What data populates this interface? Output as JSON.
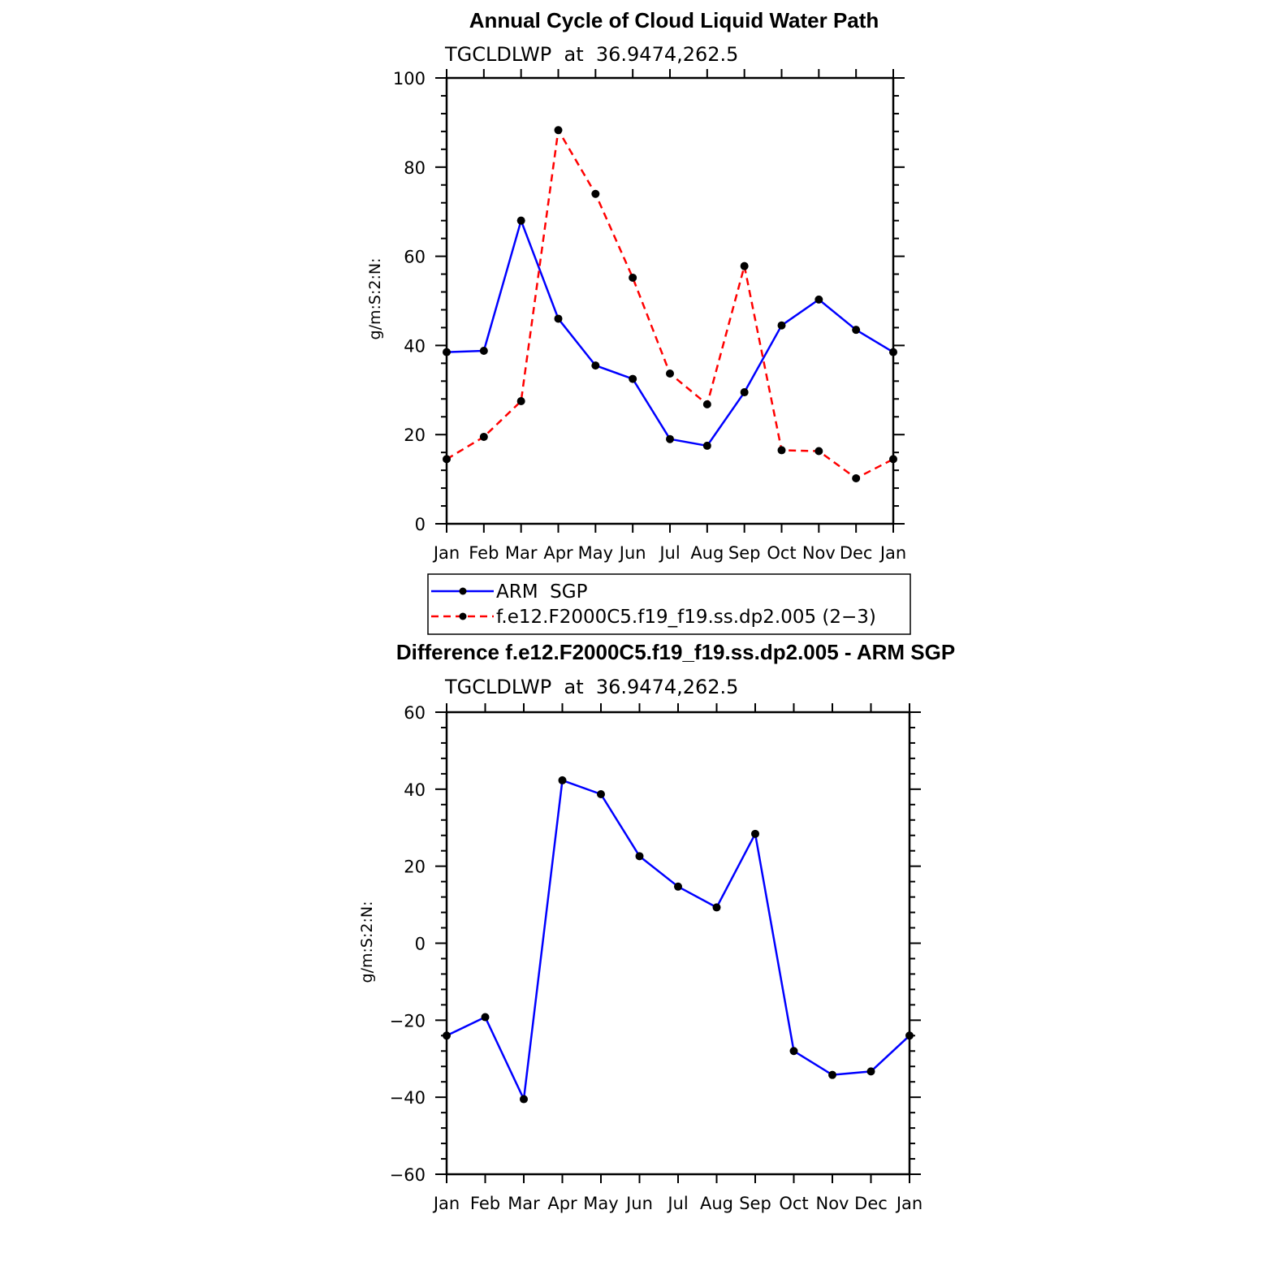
{
  "chart_data": [
    {
      "type": "line",
      "title": "Annual Cycle of Cloud Liquid Water Path",
      "subtitle": "TGCLDLWP  at  36.9474,262.5",
      "ylabel": "g/m:S:2:N:",
      "xlabel": "",
      "ylim": [
        0,
        100
      ],
      "yticks": [
        0,
        20,
        40,
        60,
        80,
        100
      ],
      "categories": [
        "Jan",
        "Feb",
        "Mar",
        "Apr",
        "May",
        "Jun",
        "Jul",
        "Aug",
        "Sep",
        "Oct",
        "Nov",
        "Dec",
        "Jan"
      ],
      "series": [
        {
          "name": "ARM  SGP",
          "color": "#0000ff",
          "dash": "solid",
          "values": [
            38.5,
            38.8,
            68.0,
            46.0,
            35.5,
            32.5,
            19.0,
            17.5,
            29.5,
            44.5,
            50.3,
            43.5,
            38.5
          ]
        },
        {
          "name": "f.e12.F2000C5.f19_f19.ss.dp2.005 (2−3)",
          "color": "#ff0000",
          "dash": "dashed",
          "values": [
            14.5,
            19.5,
            27.5,
            88.3,
            74.0,
            55.2,
            33.7,
            26.8,
            57.8,
            16.5,
            16.3,
            10.2,
            14.5
          ]
        }
      ],
      "legend": "bottom"
    },
    {
      "type": "line",
      "title": "Difference f.e12.F2000C5.f19_f19.ss.dp2.005 - ARM SGP",
      "subtitle": "TGCLDLWP  at  36.9474,262.5",
      "ylabel": "g/m:S:2:N:",
      "xlabel": "",
      "ylim": [
        -60,
        60
      ],
      "yticks": [
        "−60",
        "−40",
        "−20",
        "0",
        "20",
        "40",
        "60"
      ],
      "ytick_values": [
        -60,
        -40,
        -20,
        0,
        20,
        40,
        60
      ],
      "categories": [
        "Jan",
        "Feb",
        "Mar",
        "Apr",
        "May",
        "Jun",
        "Jul",
        "Aug",
        "Sep",
        "Oct",
        "Nov",
        "Dec",
        "Jan"
      ],
      "series": [
        {
          "color": "#0000ff",
          "dash": "solid",
          "values": [
            -24.0,
            -19.2,
            -40.5,
            42.3,
            38.7,
            22.6,
            14.7,
            9.3,
            28.4,
            -28.0,
            -34.2,
            -33.3,
            -24.0
          ]
        }
      ]
    }
  ]
}
